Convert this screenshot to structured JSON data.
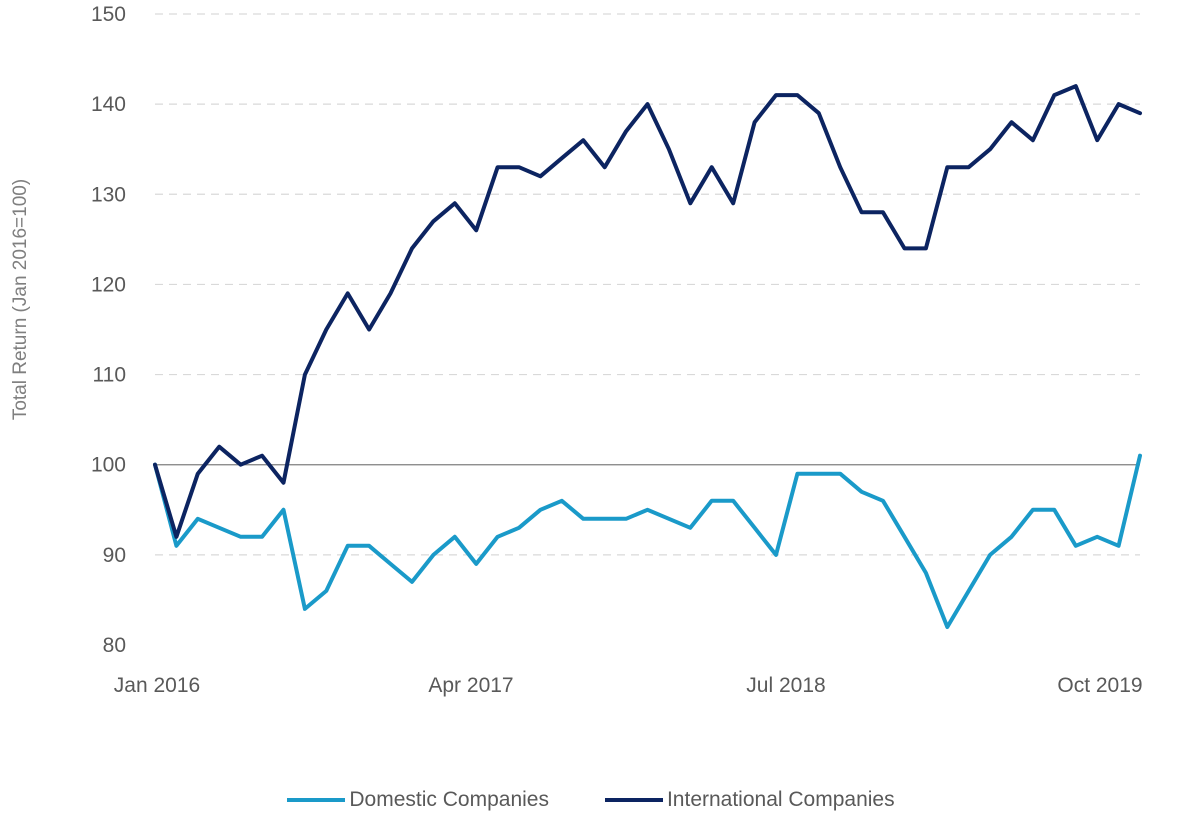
{
  "chart_data": {
    "type": "line",
    "title": "",
    "ylabel": "Total Return (Jan 2016=100)",
    "xlabel": "",
    "ylim": [
      80,
      150
    ],
    "yticks": [
      "80",
      "90",
      "100",
      "110",
      "120",
      "130",
      "140",
      "150"
    ],
    "xticks": [
      "Jan 2016",
      "Apr 2017",
      "Jul 2018",
      "Oct 2019"
    ],
    "x_range": [
      "2016-01",
      "2019-11"
    ],
    "grid": "horizontal dashed",
    "reference_line": 100,
    "legend_position": "bottom",
    "series": [
      {
        "name": "Domestic Companies",
        "color": "#1a9ac9",
        "x": [
          "2016-01",
          "2016-02",
          "2016-03",
          "2016-04",
          "2016-05",
          "2016-06",
          "2016-07",
          "2016-08",
          "2016-09",
          "2016-10",
          "2016-11",
          "2016-12",
          "2017-01",
          "2017-02",
          "2017-03",
          "2017-04",
          "2017-05",
          "2017-06",
          "2017-07",
          "2017-08",
          "2017-09",
          "2017-10",
          "2017-11",
          "2017-12",
          "2018-01",
          "2018-02",
          "2018-03",
          "2018-04",
          "2018-05",
          "2018-06",
          "2018-07",
          "2018-08",
          "2018-09",
          "2018-10",
          "2018-11",
          "2018-12",
          "2019-01",
          "2019-02",
          "2019-03",
          "2019-04",
          "2019-05",
          "2019-06",
          "2019-07",
          "2019-08",
          "2019-09",
          "2019-10",
          "2019-11"
        ],
        "values": [
          100,
          91,
          94,
          93,
          92,
          92,
          95,
          84,
          86,
          91,
          91,
          89,
          87,
          90,
          92,
          89,
          92,
          93,
          95,
          96,
          94,
          94,
          94,
          95,
          94,
          93,
          96,
          96,
          93,
          90,
          99,
          99,
          99,
          97,
          96,
          92,
          88,
          82,
          86,
          90,
          92,
          95,
          95,
          91,
          92,
          91,
          101
        ]
      },
      {
        "name": "International Companies",
        "color": "#0c2461",
        "x": [
          "2016-01",
          "2016-02",
          "2016-03",
          "2016-04",
          "2016-05",
          "2016-06",
          "2016-07",
          "2016-08",
          "2016-09",
          "2016-10",
          "2016-11",
          "2016-12",
          "2017-01",
          "2017-02",
          "2017-03",
          "2017-04",
          "2017-05",
          "2017-06",
          "2017-07",
          "2017-08",
          "2017-09",
          "2017-10",
          "2017-11",
          "2017-12",
          "2018-01",
          "2018-02",
          "2018-03",
          "2018-04",
          "2018-05",
          "2018-06",
          "2018-07",
          "2018-08",
          "2018-09",
          "2018-10",
          "2018-11",
          "2018-12",
          "2019-01",
          "2019-02",
          "2019-03",
          "2019-04",
          "2019-05",
          "2019-06",
          "2019-07",
          "2019-08",
          "2019-09",
          "2019-10",
          "2019-11"
        ],
        "values": [
          100,
          92,
          99,
          102,
          100,
          101,
          98,
          110,
          115,
          119,
          115,
          119,
          124,
          127,
          129,
          126,
          133,
          133,
          132,
          134,
          136,
          133,
          137,
          140,
          135,
          129,
          133,
          129,
          138,
          141,
          141,
          139,
          133,
          128,
          128,
          124,
          124,
          133,
          133,
          135,
          138,
          136,
          141,
          142,
          136,
          140,
          139
        ]
      }
    ]
  }
}
